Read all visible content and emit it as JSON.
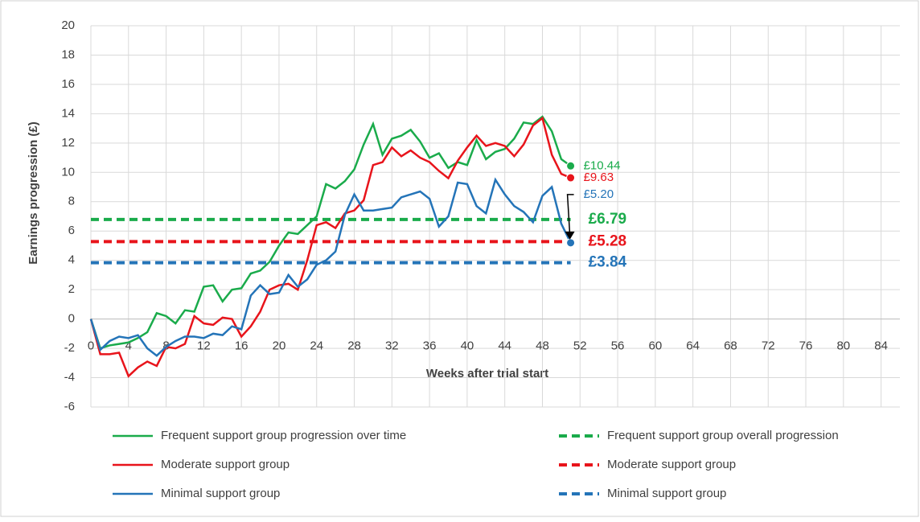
{
  "chart_data": {
    "type": "line",
    "xlabel": "Weeks after trial start",
    "ylabel": "Earnings progression (£)",
    "xlim": [
      0,
      86
    ],
    "xticks": [
      0,
      4,
      8,
      12,
      16,
      20,
      24,
      28,
      32,
      36,
      40,
      44,
      48,
      52,
      56,
      60,
      64,
      68,
      72,
      76,
      80,
      84
    ],
    "ylim": [
      -6,
      20
    ],
    "yticks": [
      -6,
      -4,
      -2,
      0,
      2,
      4,
      6,
      8,
      10,
      12,
      14,
      16,
      18,
      20
    ],
    "grid": true,
    "x": [
      0,
      1,
      2,
      3,
      4,
      5,
      6,
      7,
      8,
      9,
      10,
      11,
      12,
      13,
      14,
      15,
      16,
      17,
      18,
      19,
      20,
      21,
      22,
      23,
      24,
      25,
      26,
      27,
      28,
      29,
      30,
      31,
      32,
      33,
      34,
      35,
      36,
      37,
      38,
      39,
      40,
      41,
      42,
      43,
      44,
      45,
      46,
      47,
      48,
      49,
      50,
      51
    ],
    "series": [
      {
        "name": "Frequent support group progression over time",
        "color": "#1aab4b",
        "style": "solid",
        "values": [
          0,
          -2.0,
          -1.8,
          -1.7,
          -1.6,
          -1.3,
          -0.9,
          0.4,
          0.2,
          -0.3,
          0.6,
          0.5,
          2.2,
          2.3,
          1.2,
          2.0,
          2.1,
          3.1,
          3.3,
          3.9,
          5.0,
          5.9,
          5.8,
          6.4,
          7.0,
          9.2,
          8.9,
          9.4,
          10.2,
          11.9,
          13.3,
          11.2,
          12.3,
          12.5,
          12.9,
          12.1,
          11.0,
          11.3,
          10.3,
          10.7,
          10.5,
          12.2,
          10.9,
          11.4,
          11.6,
          12.3,
          13.4,
          13.3,
          13.8,
          12.8,
          10.9,
          10.44
        ],
        "value_labels": [
          null,
          null,
          null,
          null,
          null,
          null,
          null,
          null,
          null,
          null,
          null,
          null,
          null,
          null,
          null,
          null,
          null,
          null,
          null,
          null,
          null,
          null,
          null,
          null,
          null,
          null,
          null,
          null,
          null,
          null,
          null,
          null,
          null,
          null,
          null,
          null,
          null,
          null,
          null,
          null,
          null,
          null,
          null,
          null,
          null,
          null,
          null,
          null,
          null,
          null,
          null,
          "£10.44"
        ]
      },
      {
        "name": "Frequent support group overall progression",
        "color": "#1aab4b",
        "style": "dashed",
        "x": [
          0,
          51
        ],
        "values": [
          6.79,
          6.79
        ],
        "value_labels": [
          null,
          "£6.79"
        ]
      },
      {
        "name": "Moderate support group",
        "color": "#e8141b",
        "style": "solid",
        "values": [
          0,
          -2.4,
          -2.4,
          -2.3,
          -3.9,
          -3.3,
          -2.9,
          -3.2,
          -1.9,
          -2.0,
          -1.7,
          0.2,
          -0.3,
          -0.4,
          0.1,
          0.0,
          -1.2,
          -0.5,
          0.5,
          2.0,
          2.3,
          2.4,
          2.0,
          4.0,
          6.4,
          6.6,
          6.2,
          7.2,
          7.4,
          8.1,
          10.5,
          10.7,
          11.7,
          11.1,
          11.5,
          11.0,
          10.7,
          10.1,
          9.6,
          10.8,
          11.7,
          12.5,
          11.8,
          12.0,
          11.8,
          11.1,
          11.9,
          13.2,
          13.7,
          11.2,
          9.9,
          9.63
        ],
        "value_labels": [
          null,
          null,
          null,
          null,
          null,
          null,
          null,
          null,
          null,
          null,
          null,
          null,
          null,
          null,
          null,
          null,
          null,
          null,
          null,
          null,
          null,
          null,
          null,
          null,
          null,
          null,
          null,
          null,
          null,
          null,
          null,
          null,
          null,
          null,
          null,
          null,
          null,
          null,
          null,
          null,
          null,
          null,
          null,
          null,
          null,
          null,
          null,
          null,
          null,
          null,
          null,
          "£9.63"
        ]
      },
      {
        "name": "Moderate support group",
        "color": "#e8141b",
        "style": "dashed",
        "x": [
          0,
          51
        ],
        "values": [
          5.28,
          5.28
        ],
        "value_labels": [
          null,
          "£5.28"
        ]
      },
      {
        "name": "Minimal support group",
        "color": "#2474b8",
        "style": "solid",
        "values": [
          0,
          -2.1,
          -1.5,
          -1.2,
          -1.3,
          -1.1,
          -2.0,
          -2.5,
          -1.9,
          -1.5,
          -1.2,
          -1.2,
          -1.3,
          -1.0,
          -1.1,
          -0.5,
          -0.7,
          1.6,
          2.3,
          1.7,
          1.8,
          3.0,
          2.2,
          2.7,
          3.7,
          4.0,
          4.6,
          7.1,
          8.5,
          7.4,
          7.4,
          7.5,
          7.6,
          8.3,
          8.5,
          8.7,
          8.2,
          6.3,
          7.0,
          9.3,
          9.2,
          7.7,
          7.2,
          9.5,
          8.5,
          7.7,
          7.3,
          6.6,
          8.4,
          9.0,
          6.5,
          5.2
        ],
        "value_labels": [
          null,
          null,
          null,
          null,
          null,
          null,
          null,
          null,
          null,
          null,
          null,
          null,
          null,
          null,
          null,
          null,
          null,
          null,
          null,
          null,
          null,
          null,
          null,
          null,
          null,
          null,
          null,
          null,
          null,
          null,
          null,
          null,
          null,
          null,
          null,
          null,
          null,
          null,
          null,
          null,
          null,
          null,
          null,
          null,
          null,
          null,
          null,
          null,
          null,
          null,
          null,
          "£5.20"
        ]
      },
      {
        "name": "Minimal support group",
        "color": "#2474b8",
        "style": "dashed",
        "x": [
          0,
          51
        ],
        "values": [
          3.84,
          3.84
        ],
        "value_labels": [
          null,
          "£3.84"
        ]
      }
    ]
  }
}
